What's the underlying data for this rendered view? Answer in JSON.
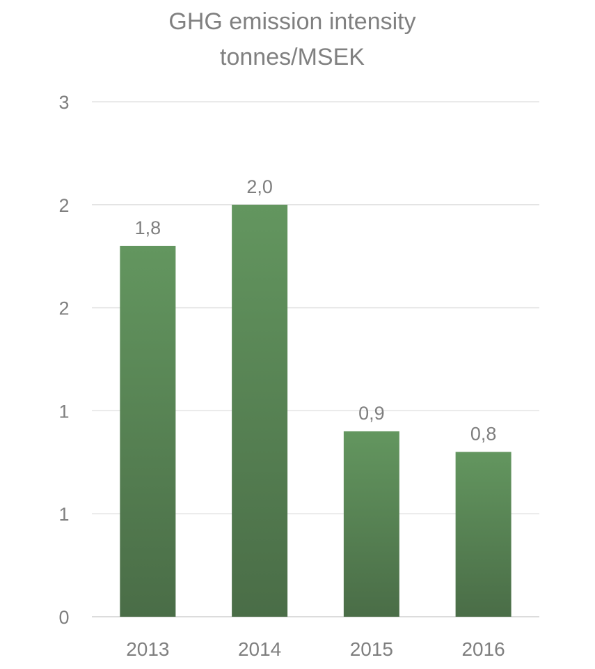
{
  "chart_data": {
    "type": "bar",
    "title": "GHG emission intensity",
    "subtitle": "tonnes/MSEK",
    "categories": [
      "2013",
      "2014",
      "2015",
      "2016"
    ],
    "values": [
      1.8,
      2.0,
      0.9,
      0.8
    ],
    "data_labels": [
      "1,8",
      "2,0",
      "0,9",
      "0,8"
    ],
    "y_tick_labels": [
      "0",
      "1",
      "1",
      "2",
      "2",
      "3"
    ],
    "ylim": [
      0,
      2.5
    ],
    "grid": true,
    "legend": "none",
    "colors": {
      "bar_top": "#63965f",
      "bar_bottom": "#4a6d47"
    }
  }
}
